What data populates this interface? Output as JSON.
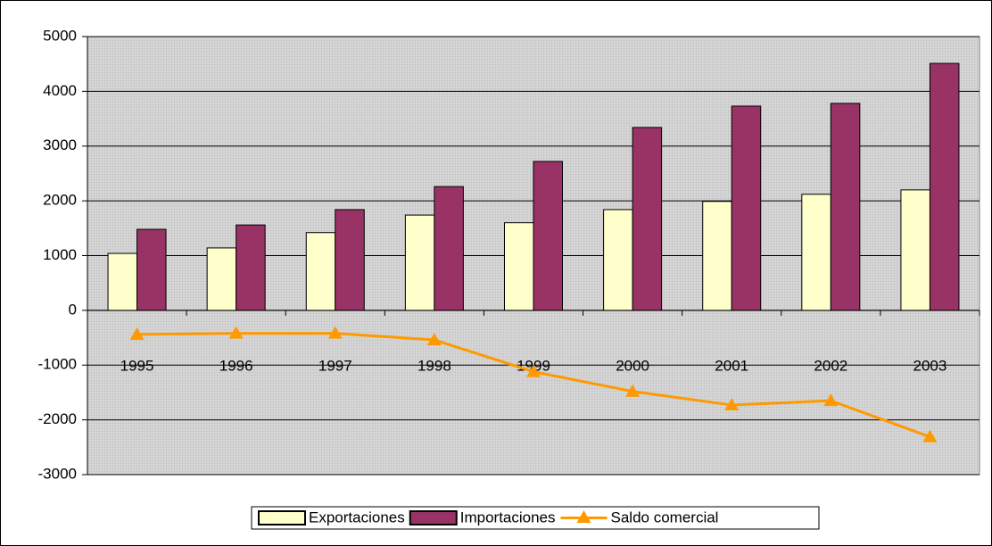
{
  "chart_data": {
    "type": "bar-line",
    "categories": [
      "1995",
      "1996",
      "1997",
      "1998",
      "1999",
      "2000",
      "2001",
      "2002",
      "2003"
    ],
    "series": [
      {
        "name": "Exportaciones",
        "type": "bar",
        "color": "#ffffcc",
        "values": [
          1040,
          1140,
          1420,
          1740,
          1600,
          1840,
          1990,
          2120,
          2200
        ]
      },
      {
        "name": "Importaciones",
        "type": "bar",
        "color": "#993366",
        "values": [
          1480,
          1560,
          1840,
          2260,
          2720,
          3340,
          3730,
          3780,
          4510
        ]
      },
      {
        "name": "Saldo comercial",
        "type": "line",
        "color": "#ff9900",
        "values": [
          -440,
          -420,
          -420,
          -540,
          -1120,
          -1480,
          -1730,
          -1650,
          -2310
        ]
      }
    ],
    "ylim": [
      -3000,
      5000
    ],
    "yticks": [
      -3000,
      -2000,
      -1000,
      0,
      1000,
      2000,
      3000,
      4000,
      5000
    ],
    "grid": true,
    "legend": "bottom"
  }
}
